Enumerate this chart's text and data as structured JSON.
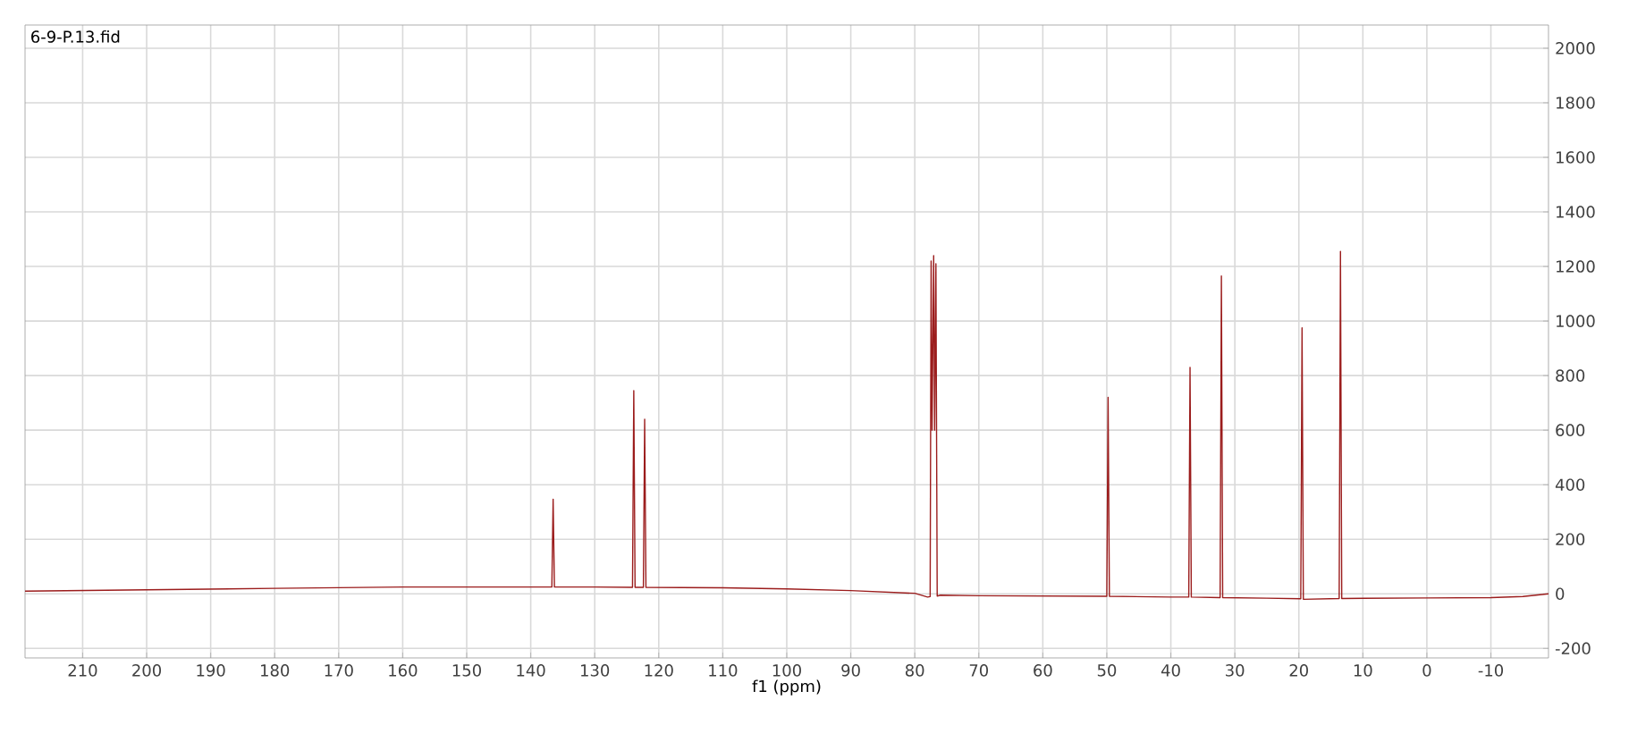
{
  "chart_data": {
    "type": "line",
    "xlabel": "f1 (ppm)",
    "annotations": [
      "6-9-P.13.fid"
    ],
    "xlim": [
      219,
      -19
    ],
    "ylim": [
      -235,
      2085
    ],
    "xticks": [
      210,
      200,
      190,
      180,
      170,
      160,
      150,
      140,
      130,
      120,
      110,
      100,
      90,
      80,
      70,
      60,
      50,
      40,
      30,
      20,
      10,
      0,
      -10
    ],
    "yticks": [
      -200,
      0,
      200,
      400,
      600,
      800,
      1000,
      1200,
      1400,
      1600,
      1800,
      2000
    ],
    "grid": true,
    "marker": "none",
    "line_style": "solid",
    "series": [
      {
        "color": "#9b1c1c",
        "x": [
          219,
          200,
          180,
          160,
          140,
          137,
          136.7,
          136.5,
          136.3,
          130,
          124.1,
          123.9,
          123.7,
          122.4,
          122.2,
          122.0,
          110,
          100,
          90,
          80,
          78.0,
          77.6,
          77.45,
          77.3,
          77.05,
          76.9,
          76.7,
          76.5,
          76,
          70,
          60,
          50.0,
          49.8,
          49.6,
          40,
          37.2,
          37.0,
          36.8,
          32.3,
          32.1,
          31.9,
          25,
          19.7,
          19.5,
          19.3,
          13.7,
          13.5,
          13.3,
          0,
          -10,
          -15,
          -19
        ],
        "values": [
          10,
          15,
          20,
          25,
          25,
          25,
          25,
          347,
          25,
          25,
          24,
          745,
          24,
          24,
          640,
          24,
          22,
          18,
          12,
          2,
          -12,
          -10,
          1220,
          600,
          1240,
          600,
          1210,
          -8,
          -5,
          -7,
          -8,
          -9,
          720,
          -9,
          -12,
          -12,
          830,
          -12,
          -14,
          1165,
          -14,
          -16,
          -18,
          975,
          -20,
          -17,
          1255,
          -17,
          -15,
          -14,
          -10,
          0
        ]
      }
    ]
  }
}
